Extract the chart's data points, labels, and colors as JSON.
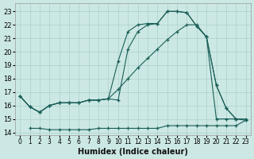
{
  "xlabel": "Humidex (Indice chaleur)",
  "background_color": "#cce8e4",
  "grid_color": "#aad0cc",
  "line_color": "#1a5f58",
  "xlim": [
    -0.5,
    23.5
  ],
  "ylim": [
    13.8,
    23.6
  ],
  "yticks": [
    14,
    15,
    16,
    17,
    18,
    19,
    20,
    21,
    22,
    23
  ],
  "xticks": [
    0,
    1,
    2,
    3,
    4,
    5,
    6,
    7,
    8,
    9,
    10,
    11,
    12,
    13,
    14,
    15,
    16,
    17,
    18,
    19,
    20,
    21,
    22,
    23
  ],
  "line1_x": [
    0,
    1,
    2,
    3,
    4,
    5,
    6,
    7,
    8,
    9,
    10,
    11,
    12,
    13,
    14,
    15,
    16,
    17,
    18,
    19,
    20,
    21,
    22
  ],
  "line1_y": [
    16.7,
    15.9,
    15.5,
    16.0,
    16.2,
    16.2,
    16.2,
    16.4,
    16.4,
    16.5,
    19.3,
    21.5,
    22.0,
    22.1,
    22.1,
    23.0,
    23.0,
    22.9,
    21.9,
    21.1,
    15.0,
    15.0,
    15.0
  ],
  "line2_x": [
    0,
    1,
    2,
    3,
    4,
    5,
    6,
    7,
    8,
    9,
    10,
    11,
    12,
    13,
    14,
    15,
    16,
    17,
    18,
    19,
    20,
    21,
    22,
    23
  ],
  "line2_y": [
    16.7,
    15.9,
    15.5,
    16.0,
    16.2,
    16.2,
    16.2,
    16.4,
    16.4,
    16.5,
    16.4,
    20.2,
    21.5,
    22.0,
    22.1,
    23.0,
    23.0,
    22.9,
    21.9,
    21.1,
    17.5,
    15.8,
    15.0,
    15.0
  ],
  "line3_x": [
    0,
    1,
    2,
    3,
    4,
    5,
    6,
    7,
    8,
    9,
    10,
    11,
    12,
    13,
    14,
    15,
    16,
    17,
    18,
    19,
    20,
    21,
    22,
    23
  ],
  "line3_y": [
    16.7,
    15.9,
    15.5,
    16.0,
    16.2,
    16.2,
    16.2,
    16.4,
    16.4,
    16.5,
    17.2,
    18.0,
    18.8,
    19.5,
    20.2,
    20.9,
    21.5,
    22.0,
    22.0,
    21.1,
    17.5,
    15.8,
    15.0,
    14.9
  ],
  "line4_x": [
    0,
    1,
    2,
    3,
    4,
    5,
    6,
    7,
    8,
    9,
    10,
    11,
    12,
    13,
    14,
    15,
    16,
    17,
    18,
    19,
    20,
    21,
    22,
    23
  ],
  "line4_y": [
    null,
    14.3,
    14.3,
    14.2,
    14.2,
    14.2,
    14.2,
    14.2,
    14.3,
    14.3,
    14.3,
    14.3,
    14.3,
    14.3,
    14.3,
    14.5,
    14.5,
    14.5,
    14.5,
    14.5,
    14.5,
    14.5,
    14.5,
    14.9
  ]
}
